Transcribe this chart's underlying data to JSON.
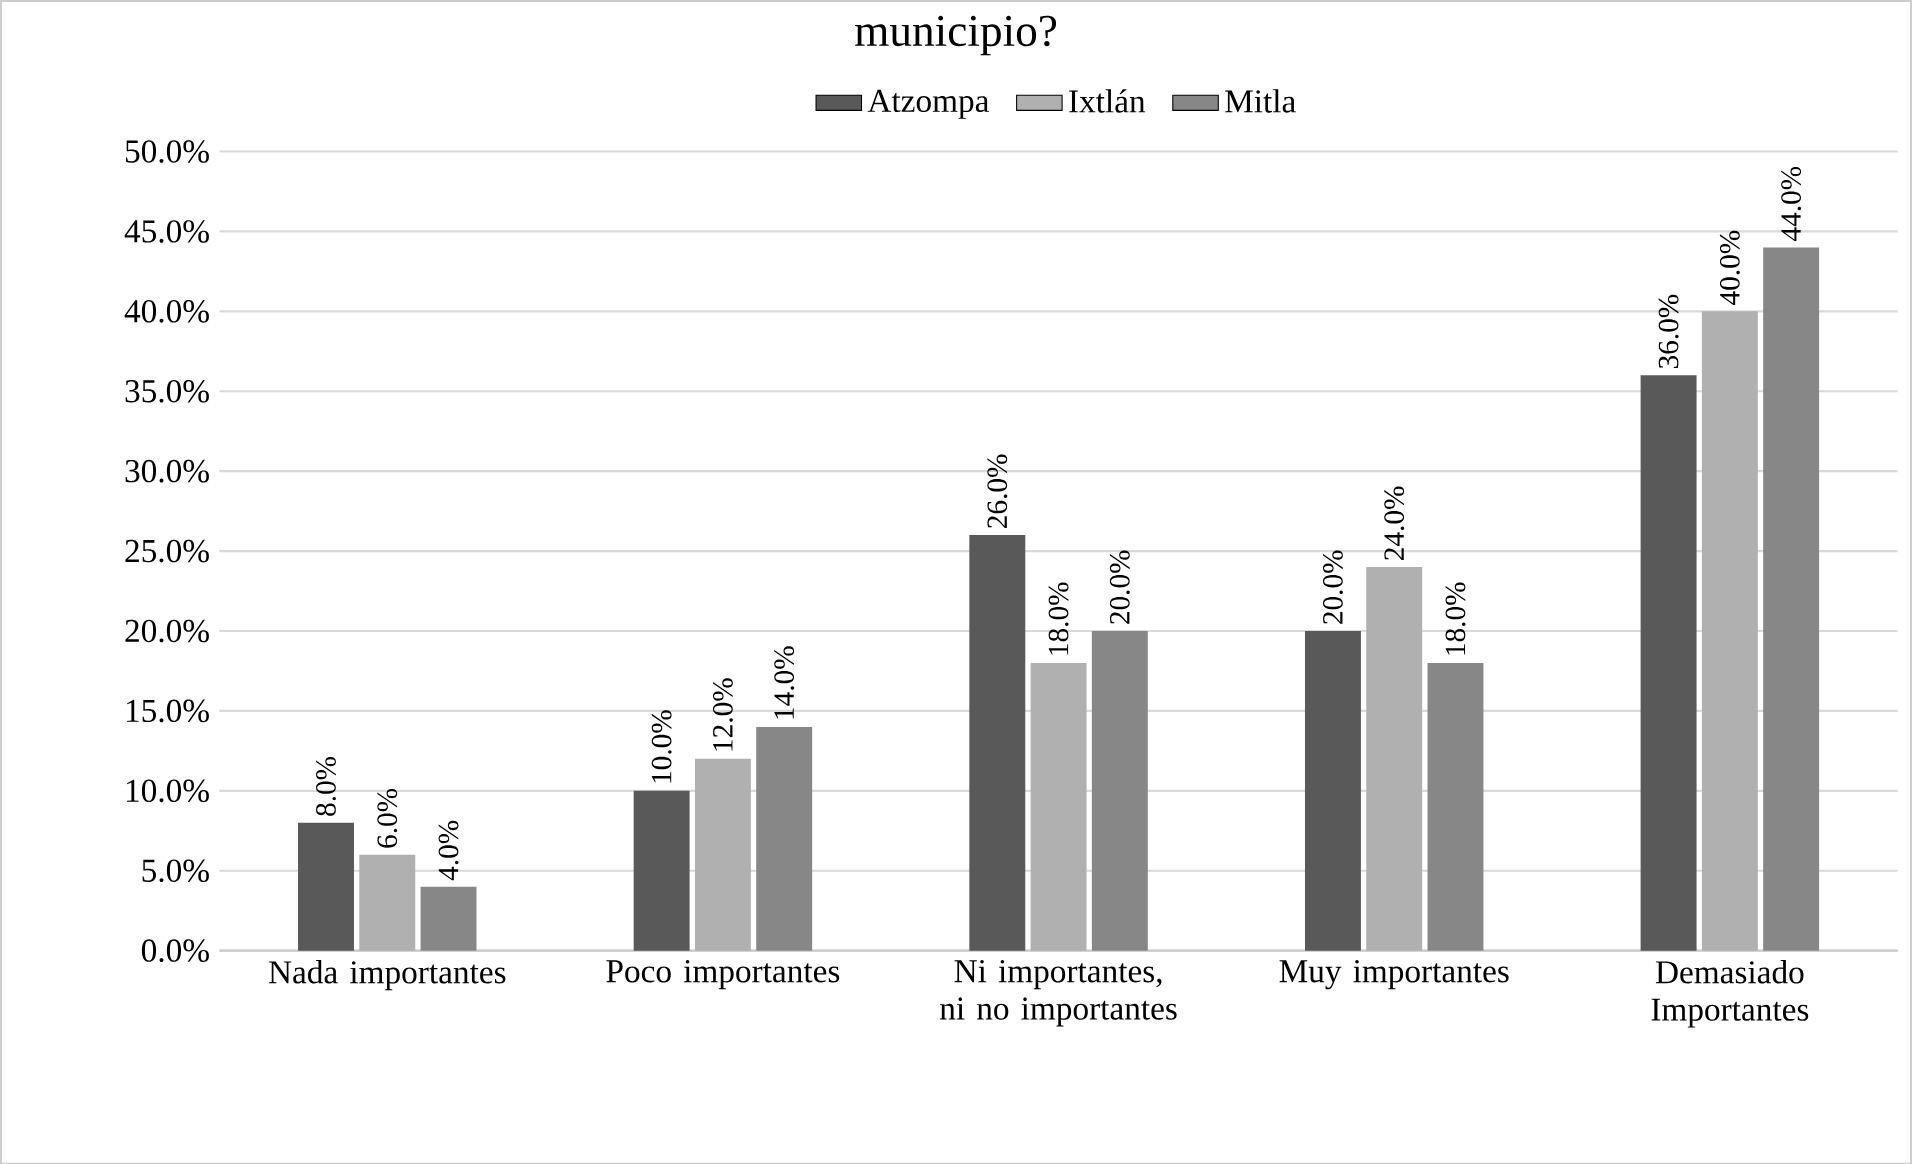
{
  "chart_data": {
    "type": "bar",
    "title": "municipio?",
    "categories": [
      "Nada importantes",
      "Poco importantes",
      "Ni importantes, ni no importantes",
      "Muy importantes",
      "Demasiado Importantes"
    ],
    "series": [
      {
        "name": "Atzompa",
        "color": "#595959",
        "values": [
          8,
          10,
          26,
          20,
          36
        ],
        "value_labels": [
          "8.0%",
          "10.0%",
          "26.0%",
          "20.0%",
          "36.0%"
        ]
      },
      {
        "name": "Ixtlán",
        "color": "#b0b0b0",
        "values": [
          6,
          12,
          18,
          24,
          40
        ],
        "value_labels": [
          "6.0%",
          "12.0%",
          "18.0%",
          "24.0%",
          "40.0%"
        ]
      },
      {
        "name": "Mitla",
        "color": "#878787",
        "values": [
          4,
          14,
          20,
          18,
          44
        ],
        "value_labels": [
          "4.0%",
          "14.0%",
          "20.0%",
          "18.0%",
          "44.0%"
        ]
      }
    ],
    "ylim": [
      0,
      50
    ],
    "yticks": [
      {
        "value": 0,
        "label": "0.0%"
      },
      {
        "value": 5,
        "label": "5.0%"
      },
      {
        "value": 10,
        "label": "10.0%"
      },
      {
        "value": 15,
        "label": "15.0%"
      },
      {
        "value": 20,
        "label": "20.0%"
      },
      {
        "value": 25,
        "label": "25.0%"
      },
      {
        "value": 30,
        "label": "30.0%"
      },
      {
        "value": 35,
        "label": "35.0%"
      },
      {
        "value": 40,
        "label": "40.0%"
      },
      {
        "value": 45,
        "label": "45.0%"
      },
      {
        "value": 50,
        "label": "50.0%"
      }
    ],
    "grid": "y",
    "legend": "top"
  }
}
